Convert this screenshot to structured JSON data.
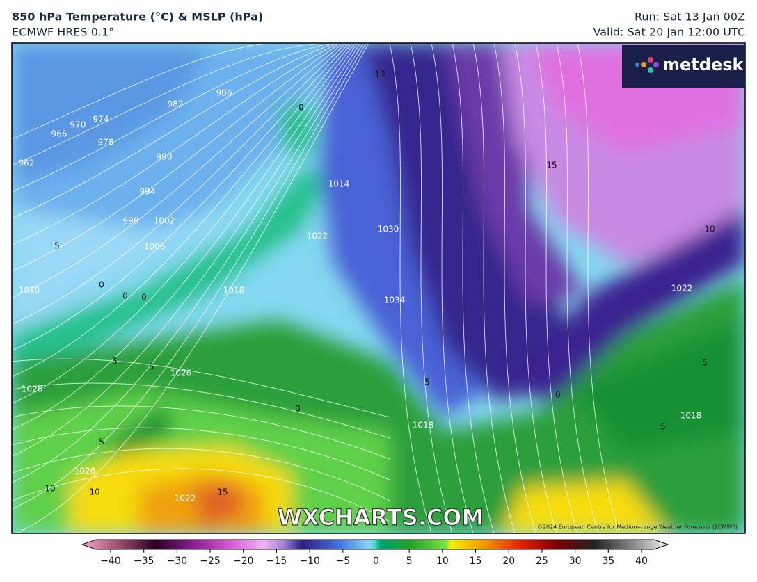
{
  "header": {
    "title": "850 hPa Temperature (°C) & MSLP (hPa)",
    "model": "ECMWF HRES 0.1°",
    "run": "Run: Sat 13 Jan 00Z",
    "valid": "Valid: Sat 20 Jan 12:00 UTC"
  },
  "logo": "metdesk",
  "watermark": "WXCHARTS.COM",
  "copyright": "©2024 European Centre for Medium-range Weather Forecasts (ECMWF)",
  "isobar_labels": [
    "962",
    "966",
    "970",
    "974",
    "978",
    "982",
    "986",
    "990",
    "994",
    "998",
    "1002",
    "1006",
    "1010",
    "1014",
    "1018",
    "1022",
    "1026",
    "1026",
    "1026",
    "1022",
    "1030",
    "1034",
    "1018",
    "1018",
    "1022"
  ],
  "temperature_labels": [
    "0",
    "5",
    "0",
    "0",
    "0",
    "5",
    "5",
    "5",
    "10",
    "10",
    "15",
    "0",
    "15",
    "10",
    "10",
    "5",
    "0",
    "5",
    "5"
  ],
  "colorbar": {
    "ticks": [
      "−40",
      "−35",
      "−30",
      "−25",
      "−20",
      "−15",
      "−10",
      "−5",
      "0",
      "5",
      "10",
      "15",
      "20",
      "25",
      "30",
      "35",
      "40"
    ]
  }
}
